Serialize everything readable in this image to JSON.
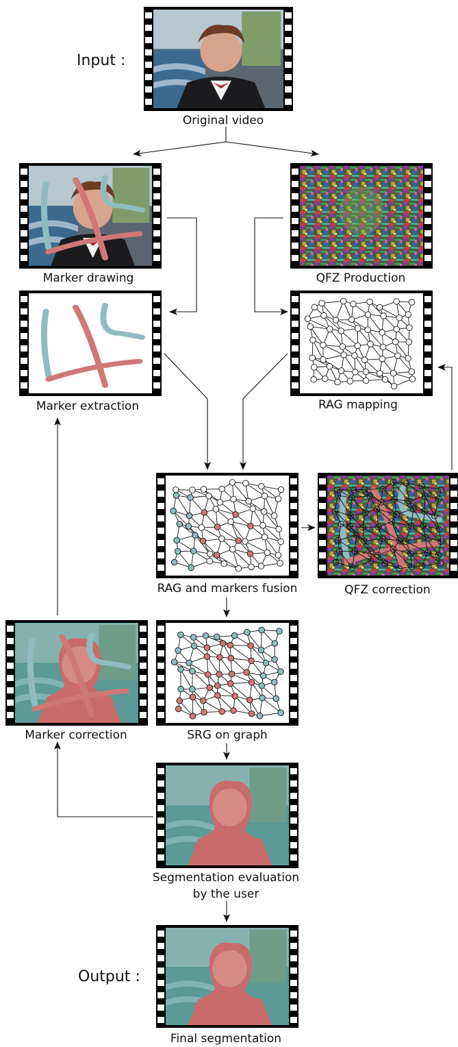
{
  "diagram": {
    "input_label": "Input :",
    "output_label": "Output :",
    "steps": {
      "original_video": "Original video",
      "marker_drawing": "Marker drawing",
      "qfz_production": "QFZ Production",
      "marker_extraction": "Marker extraction",
      "rag_mapping": "RAG mapping",
      "rag_markers_fusion": "RAG and markers fusion",
      "qfz_correction": "QFZ correction",
      "marker_correction": "Marker correction",
      "srg_on_graph": "SRG on graph",
      "segmentation_evaluation_line1": "Segmentation evaluation",
      "segmentation_evaluation_line2": "by the user",
      "final_segmentation": "Final segmentation"
    }
  },
  "colors": {
    "marker_blue": "#8fbcc0",
    "marker_red": "#d07878",
    "segment_red": "#c96b6b",
    "segment_bg": "#5b9a96",
    "film_black": "#000000"
  }
}
